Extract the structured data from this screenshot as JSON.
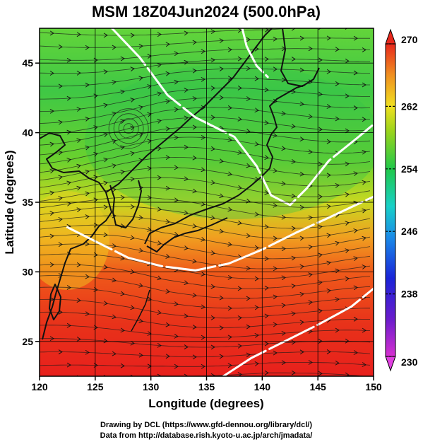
{
  "figure": {
    "title": "MSM 18Z04Jun2024 (500.0hPa)",
    "xlabel": "Longitude (degrees)",
    "ylabel": "Latitude  (degrees)",
    "credit_line1": "Drawing by DCL (https://www.gfd-dennou.org/library/dcl/)",
    "credit_line2": "Data from http://database.rish.kyoto-u.ac.jp/arch/jmadata/"
  },
  "chart_data": {
    "type": "heatmap",
    "title": "MSM 18Z04Jun2024 (500.0hPa)",
    "xlabel": "Longitude (degrees)",
    "ylabel": "Latitude  (degrees)",
    "xlim": [
      120,
      150
    ],
    "ylim": [
      22.5,
      47.5
    ],
    "xticks": [
      120,
      125,
      130,
      135,
      140,
      145,
      150
    ],
    "yticks": [
      25,
      30,
      35,
      40,
      45
    ],
    "grid": true,
    "colorbar": {
      "min": 230,
      "max": 270,
      "ticks": [
        230,
        238,
        246,
        254,
        262,
        270
      ],
      "placement": "right",
      "extend": "both"
    },
    "field": "temperature",
    "overlays": [
      "streamlines",
      "coastlines",
      "contours"
    ],
    "white_contours": [
      {
        "points": [
          [
            122.5,
            33.2
          ],
          [
            125,
            32.2
          ],
          [
            128,
            31.0
          ],
          [
            131,
            30.4
          ],
          [
            134,
            30.1
          ],
          [
            137,
            30.6
          ],
          [
            140,
            31.6
          ],
          [
            143,
            32.8
          ],
          [
            146,
            33.9
          ],
          [
            150,
            35.4
          ]
        ]
      },
      {
        "points": [
          [
            126.5,
            47.5
          ],
          [
            129,
            45.4
          ],
          [
            131.5,
            42.7
          ],
          [
            134,
            41.1
          ],
          [
            137.5,
            39.7
          ],
          [
            139.5,
            37.6
          ],
          [
            140.8,
            35.5
          ],
          [
            142.5,
            34.8
          ],
          [
            144,
            36.0
          ],
          [
            146,
            38.0
          ],
          [
            148.5,
            39.6
          ],
          [
            150,
            40.6
          ]
        ]
      },
      {
        "points": [
          [
            136.5,
            22.5
          ],
          [
            139,
            23.8
          ],
          [
            142,
            25.0
          ],
          [
            145,
            26.2
          ],
          [
            148,
            27.5
          ],
          [
            150,
            28.8
          ]
        ]
      },
      {
        "points": [
          [
            138.2,
            47.5
          ],
          [
            138.6,
            46.2
          ],
          [
            139.5,
            44.8
          ],
          [
            140.5,
            44.0
          ]
        ]
      }
    ]
  }
}
